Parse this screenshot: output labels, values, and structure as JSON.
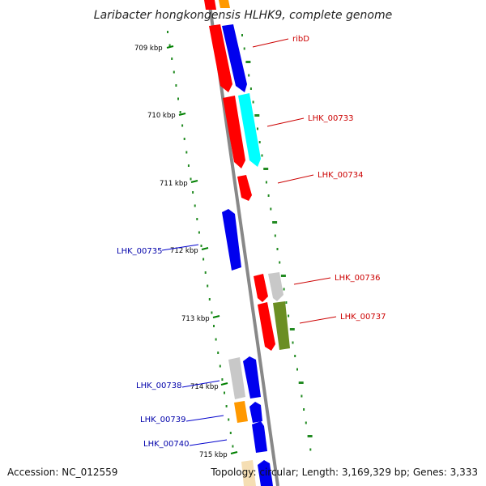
{
  "title": "Laribacter hongkongensis HLHK9, complete genome",
  "footer": {
    "accession": "Accession: NC_012559",
    "topology": "Topology: circular; Length: 3,169,329 bp; Genes: 3,333"
  },
  "ticks": [
    {
      "label": "709 kbp"
    },
    {
      "label": "710 kbp"
    },
    {
      "label": "711 kbp"
    },
    {
      "label": "712 kbp"
    },
    {
      "label": "713 kbp"
    },
    {
      "label": "714 kbp"
    },
    {
      "label": "715 kbp"
    }
  ],
  "genes": [
    {
      "label": "ribD",
      "color": "#cc0000"
    },
    {
      "label": "LHK_00733",
      "color": "#cc0000"
    },
    {
      "label": "LHK_00734",
      "color": "#cc0000"
    },
    {
      "label": "LHK_00735",
      "color": "#0000aa"
    },
    {
      "label": "LHK_00736",
      "color": "#cc0000"
    },
    {
      "label": "LHK_00737",
      "color": "#cc0000"
    },
    {
      "label": "LHK_00738",
      "color": "#0000aa"
    },
    {
      "label": "LHK_00739",
      "color": "#0000aa"
    },
    {
      "label": "LHK_00740",
      "color": "#0000aa"
    }
  ],
  "colors": {
    "red": "#ff0000",
    "blue": "#0000ee",
    "cyan": "#00ffff",
    "gray": "#c8c8c8",
    "olive": "#6b8e23",
    "orange": "#ff9900",
    "beige": "#f5deb3",
    "backbone": "#888888",
    "gc_dots": "#228b22"
  }
}
